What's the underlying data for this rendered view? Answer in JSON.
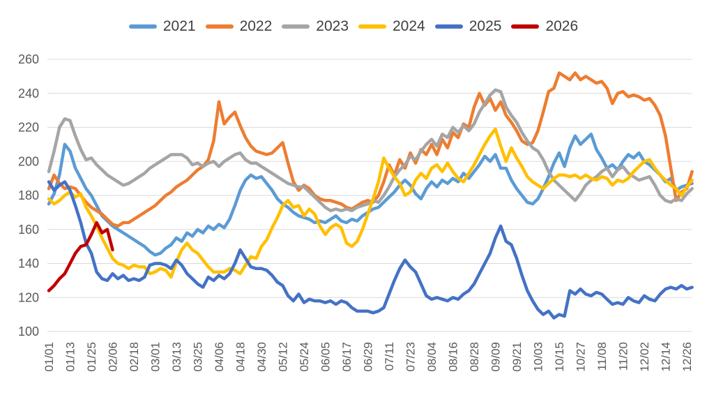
{
  "chart_data": {
    "type": "line",
    "title": "",
    "xlabel": "",
    "ylabel": "",
    "ylim": [
      100,
      260
    ],
    "y_ticks": [
      260,
      240,
      220,
      200,
      180,
      160,
      140,
      120,
      100
    ],
    "grid": "horizontal",
    "legend_position": "top",
    "x_tick_labels": [
      "01/01",
      "01/13",
      "01/25",
      "02/06",
      "02/18",
      "03/01",
      "03/13",
      "03/25",
      "04/06",
      "04/18",
      "04/30",
      "05/12",
      "05/24",
      "06/05",
      "06/17",
      "06/29",
      "07/11",
      "07/23",
      "08/04",
      "08/16",
      "08/28",
      "09/09",
      "09/21",
      "10/03",
      "10/15",
      "10/27",
      "11/08",
      "11/20",
      "12/02",
      "12/14",
      "12/26"
    ],
    "sample_interval_days": 3,
    "dates": [
      "01/01",
      "01/04",
      "01/07",
      "01/10",
      "01/13",
      "01/16",
      "01/19",
      "01/22",
      "01/25",
      "01/28",
      "01/31",
      "02/03",
      "02/06",
      "02/09",
      "02/12",
      "02/15",
      "02/18",
      "02/21",
      "02/24",
      "02/27",
      "03/01",
      "03/04",
      "03/07",
      "03/10",
      "03/13",
      "03/16",
      "03/19",
      "03/22",
      "03/25",
      "03/28",
      "03/31",
      "04/03",
      "04/06",
      "04/09",
      "04/12",
      "04/15",
      "04/18",
      "04/21",
      "04/24",
      "04/27",
      "04/30",
      "05/03",
      "05/06",
      "05/09",
      "05/12",
      "05/15",
      "05/18",
      "05/21",
      "05/24",
      "05/27",
      "05/30",
      "06/02",
      "06/05",
      "06/08",
      "06/11",
      "06/14",
      "06/17",
      "06/20",
      "06/23",
      "06/26",
      "06/29",
      "07/02",
      "07/05",
      "07/08",
      "07/11",
      "07/14",
      "07/17",
      "07/20",
      "07/23",
      "07/26",
      "07/29",
      "08/01",
      "08/04",
      "08/07",
      "08/10",
      "08/13",
      "08/16",
      "08/19",
      "08/22",
      "08/25",
      "08/28",
      "08/31",
      "09/03",
      "09/06",
      "09/09",
      "09/12",
      "09/15",
      "09/18",
      "09/21",
      "09/24",
      "09/27",
      "09/30",
      "10/03",
      "10/06",
      "10/09",
      "10/12",
      "10/15",
      "10/18",
      "10/21",
      "10/24",
      "10/27",
      "10/30",
      "11/02",
      "11/05",
      "11/08",
      "11/11",
      "11/14",
      "11/17",
      "11/20",
      "11/23",
      "11/26",
      "11/29",
      "12/02",
      "12/05",
      "12/08",
      "12/11",
      "12/14",
      "12/17",
      "12/20",
      "12/23",
      "12/26",
      "12/29"
    ],
    "series": [
      {
        "name": "2021",
        "color": "#5B9BD5",
        "values": [
          175,
          181,
          192,
          210,
          206,
          196,
          190,
          184,
          180,
          174,
          168,
          165,
          162,
          160,
          158,
          156,
          154,
          152,
          150,
          147,
          145,
          146,
          149,
          151,
          155,
          153,
          158,
          156,
          160,
          158,
          162,
          160,
          163,
          161,
          166,
          174,
          183,
          189,
          192,
          190,
          191,
          187,
          183,
          178,
          175,
          173,
          170,
          168,
          167,
          166,
          164,
          165,
          164,
          166,
          168,
          165,
          164,
          166,
          165,
          168,
          170,
          172,
          173,
          176,
          179,
          182,
          186,
          189,
          186,
          181,
          178,
          184,
          188,
          185,
          189,
          187,
          190,
          188,
          193,
          190,
          194,
          198,
          203,
          200,
          204,
          196,
          196,
          189,
          184,
          180,
          176,
          175,
          178,
          184,
          191,
          199,
          205,
          197,
          208,
          215,
          210,
          213,
          216,
          207,
          202,
          196,
          198,
          195,
          200,
          204,
          202,
          205,
          200,
          198,
          195,
          192,
          188,
          190,
          183,
          185,
          186,
          187
        ]
      },
      {
        "name": "2022",
        "color": "#ED7D31",
        "values": [
          184,
          192,
          187,
          184,
          185,
          184,
          180,
          176,
          173,
          171,
          169,
          166,
          163,
          162,
          164,
          164,
          166,
          168,
          170,
          172,
          174,
          177,
          180,
          182,
          185,
          187,
          189,
          192,
          195,
          197,
          201,
          212,
          235,
          222,
          226,
          229,
          221,
          214,
          209,
          206,
          205,
          204,
          205,
          208,
          211,
          199,
          188,
          183,
          186,
          184,
          180,
          178,
          177,
          177,
          176,
          175,
          173,
          172,
          174,
          176,
          177,
          176,
          180,
          188,
          198,
          192,
          201,
          196,
          205,
          199,
          207,
          204,
          210,
          204,
          213,
          208,
          217,
          214,
          222,
          220,
          232,
          240,
          233,
          237,
          230,
          235,
          227,
          223,
          218,
          212,
          210,
          211,
          218,
          229,
          241,
          243,
          252,
          250,
          248,
          252,
          248,
          250,
          248,
          246,
          247,
          243,
          234,
          240,
          241,
          238,
          239,
          238,
          236,
          237,
          233,
          227,
          215,
          196,
          177,
          182,
          184,
          194
        ]
      },
      {
        "name": "2023",
        "color": "#A5A5A5",
        "values": [
          194,
          206,
          220,
          225,
          224,
          215,
          207,
          201,
          202,
          198,
          195,
          192,
          190,
          188,
          186,
          187,
          189,
          191,
          193,
          196,
          198,
          200,
          202,
          204,
          204,
          204,
          202,
          198,
          199,
          197,
          199,
          200,
          197,
          200,
          202,
          204,
          205,
          201,
          199,
          199,
          197,
          195,
          193,
          191,
          189,
          187,
          186,
          185,
          185,
          182,
          179,
          176,
          173,
          171,
          172,
          171,
          172,
          171,
          173,
          174,
          175,
          177,
          176,
          180,
          185,
          191,
          195,
          198,
          203,
          201,
          206,
          210,
          213,
          209,
          216,
          214,
          220,
          217,
          221,
          218,
          222,
          229,
          234,
          239,
          242,
          241,
          232,
          227,
          223,
          217,
          212,
          208,
          206,
          201,
          194,
          189,
          186,
          183,
          180,
          177,
          181,
          186,
          189,
          191,
          194,
          196,
          191,
          195,
          197,
          193,
          191,
          189,
          190,
          191,
          186,
          180,
          177,
          176,
          178,
          177,
          181,
          184
        ]
      },
      {
        "name": "2024",
        "color": "#FFC000",
        "values": [
          178,
          175,
          177,
          180,
          182,
          179,
          181,
          173,
          168,
          162,
          155,
          149,
          143,
          140,
          139,
          137,
          139,
          138,
          138,
          134,
          135,
          137,
          136,
          132,
          141,
          148,
          152,
          148,
          146,
          142,
          138,
          135,
          135,
          135,
          137,
          136,
          134,
          139,
          144,
          143,
          150,
          154,
          161,
          167,
          174,
          177,
          173,
          174,
          168,
          172,
          169,
          162,
          157,
          161,
          163,
          161,
          152,
          150,
          153,
          160,
          169,
          178,
          188,
          202,
          196,
          191,
          187,
          180,
          182,
          189,
          193,
          190,
          196,
          198,
          194,
          199,
          194,
          190,
          188,
          193,
          198,
          204,
          210,
          215,
          219,
          209,
          200,
          208,
          202,
          197,
          191,
          188,
          186,
          184,
          187,
          190,
          192,
          192,
          191,
          192,
          190,
          192,
          190,
          189,
          191,
          190,
          186,
          189,
          188,
          190,
          194,
          197,
          200,
          201,
          196,
          192,
          189,
          186,
          184,
          180,
          185,
          189
        ]
      },
      {
        "name": "2025",
        "color": "#4472C4",
        "values": [
          188,
          183,
          186,
          188,
          183,
          174,
          164,
          152,
          146,
          135,
          131,
          130,
          134,
          131,
          133,
          130,
          131,
          130,
          132,
          139,
          140,
          140,
          139,
          137,
          142,
          139,
          134,
          131,
          128,
          126,
          132,
          130,
          133,
          131,
          134,
          140,
          148,
          143,
          138,
          137,
          137,
          136,
          133,
          129,
          127,
          121,
          118,
          122,
          117,
          119,
          118,
          118,
          117,
          118,
          116,
          118,
          117,
          114,
          112,
          112,
          112,
          111,
          112,
          114,
          122,
          130,
          137,
          142,
          138,
          135,
          128,
          121,
          119,
          120,
          119,
          118,
          120,
          119,
          122,
          124,
          128,
          134,
          140,
          146,
          155,
          162,
          153,
          151,
          143,
          133,
          124,
          118,
          113,
          110,
          112,
          108,
          110,
          109,
          124,
          122,
          125,
          122,
          121,
          123,
          122,
          119,
          116,
          117,
          116,
          120,
          118,
          117,
          121,
          119,
          118,
          122,
          125,
          126,
          125,
          127,
          125,
          126
        ]
      },
      {
        "name": "2026",
        "color": "#C00000",
        "values": [
          124,
          127,
          131,
          134,
          140,
          146,
          150,
          151,
          157,
          164,
          158,
          160,
          148
        ]
      }
    ]
  },
  "legend": {
    "items": [
      {
        "label": "2021",
        "color": "#5B9BD5"
      },
      {
        "label": "2022",
        "color": "#ED7D31"
      },
      {
        "label": "2023",
        "color": "#A5A5A5"
      },
      {
        "label": "2024",
        "color": "#FFC000"
      },
      {
        "label": "2025",
        "color": "#4472C4"
      },
      {
        "label": "2026",
        "color": "#C00000"
      }
    ]
  },
  "style": {
    "gridline_color": "#d9d9d9",
    "axis_text_color": "#595959",
    "legend_text_color": "#404040",
    "background": "#ffffff"
  }
}
